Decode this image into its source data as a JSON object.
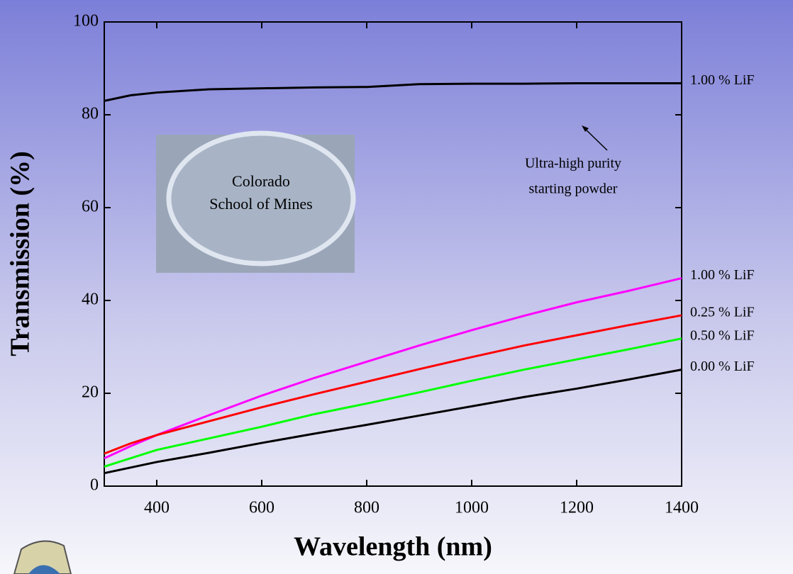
{
  "chart_data": {
    "type": "line",
    "xlabel": "Wavelength (nm)",
    "ylabel": "Transmission (%)",
    "x": [
      300,
      350,
      400,
      500,
      600,
      700,
      800,
      900,
      1000,
      1100,
      1200,
      1300,
      1400
    ],
    "series": [
      {
        "name": "1.00 % LiF",
        "color": "#000000",
        "values": [
          83.0,
          84.2,
          84.8,
          85.5,
          85.7,
          85.9,
          86.0,
          86.6,
          86.7,
          86.7,
          86.8,
          86.8,
          86.8
        ]
      },
      {
        "name": "1.00 % LiF",
        "color": "#ff00ff",
        "values": [
          6.0,
          8.6,
          11.0,
          15.3,
          19.5,
          23.3,
          26.8,
          30.3,
          33.6,
          36.7,
          39.6,
          42.1,
          44.8
        ]
      },
      {
        "name": "0.25 % LiF",
        "color": "#ff0000",
        "values": [
          7.0,
          9.2,
          11.0,
          14.0,
          17.0,
          19.8,
          22.5,
          25.2,
          27.8,
          30.3,
          32.5,
          34.7,
          36.8
        ]
      },
      {
        "name": "0.50 % LiF",
        "color": "#00ff00",
        "values": [
          4.2,
          6.0,
          7.8,
          10.3,
          12.8,
          15.5,
          17.8,
          20.2,
          22.7,
          25.1,
          27.3,
          29.5,
          31.8
        ]
      },
      {
        "name": "0.00 % LiF",
        "color": "#000000",
        "values": [
          2.8,
          4.0,
          5.2,
          7.2,
          9.3,
          11.3,
          13.2,
          15.2,
          17.2,
          19.2,
          21.0,
          23.0,
          25.1
        ]
      }
    ],
    "xlim": [
      300,
      1400
    ],
    "xticks": [
      400,
      600,
      800,
      1000,
      1200,
      1400
    ],
    "ylim": [
      0,
      100
    ],
    "yticks": [
      0,
      20,
      40,
      60,
      80,
      100
    ],
    "annotation": [
      "Ultra-high purity",
      "starting powder"
    ],
    "inset_text": [
      "Colorado",
      "School of Mines"
    ]
  }
}
